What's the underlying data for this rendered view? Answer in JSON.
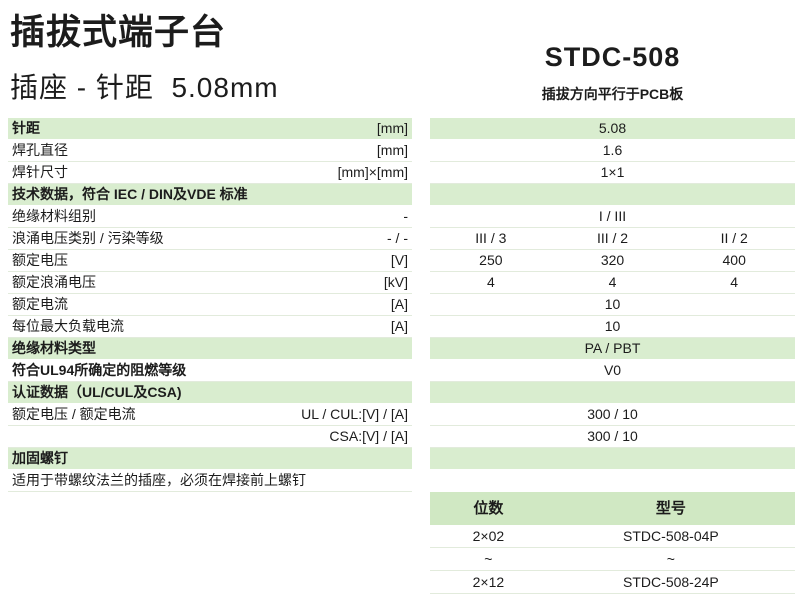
{
  "header": {
    "title": "插拔式端子台",
    "subtitle": "插座 - 针距  5.08mm",
    "product_code": "STDC-508",
    "orientation_note": "插拔方向平行于PCB板"
  },
  "colors": {
    "highlight_green": "#d9edcf",
    "table_header_green": "#d0e8c3",
    "separator": "#e2ebdc",
    "text": "#1c1c1c"
  },
  "spec_table": {
    "rows": [
      {
        "label": "针距",
        "unit": "[mm]",
        "value": "5.08",
        "highlight": true,
        "bold": true
      },
      {
        "label": "焊孔直径",
        "unit": "[mm]",
        "value": "1.6"
      },
      {
        "label": "焊针尺寸",
        "unit": "[mm]×[mm]",
        "value": "1×1"
      },
      {
        "label": "技术数据，符合 IEC / DIN及VDE 标准",
        "unit": "",
        "value": "",
        "highlight": true,
        "bold": true
      },
      {
        "label": "绝缘材料组别",
        "unit": "-",
        "value": "I / III"
      },
      {
        "label": "浪涌电压类别 / 污染等级",
        "unit": "- / -",
        "values": [
          "III / 3",
          "III / 2",
          "II / 2"
        ]
      },
      {
        "label": "额定电压",
        "unit": "[V]",
        "values": [
          "250",
          "320",
          "400"
        ]
      },
      {
        "label": "额定浪涌电压",
        "unit": "[kV]",
        "values": [
          "4",
          "4",
          "4"
        ]
      },
      {
        "label": "额定电流",
        "unit": "[A]",
        "value": "10"
      },
      {
        "label": "每位最大负载电流",
        "unit": "[A]",
        "value": "10"
      },
      {
        "label": "绝缘材料类型",
        "unit": "",
        "value": "PA / PBT",
        "highlight": true,
        "bold": true
      },
      {
        "label": "符合UL94所确定的阻燃等级",
        "unit": "",
        "value": "V0",
        "bold": true
      },
      {
        "label": "认证数据（UL/CUL及CSA)",
        "unit": "",
        "value": "",
        "highlight": true,
        "bold": true
      },
      {
        "label": "额定电压 / 额定电流",
        "unit": "UL / CUL:[V] / [A]",
        "value": "300 / 10"
      },
      {
        "label": "",
        "unit": "CSA:[V] / [A]",
        "value": "300 / 10"
      },
      {
        "label": "加固螺钉",
        "unit": "",
        "value": "",
        "highlight": true,
        "bold": true
      },
      {
        "label": "适用于带螺纹法兰的插座，必须在焊接前上螺钉",
        "unit": "",
        "value": null
      }
    ]
  },
  "model_table": {
    "headers": [
      "位数",
      "型号"
    ],
    "rows": [
      [
        "2×02",
        "STDC-508-04P"
      ],
      [
        "~",
        "~"
      ],
      [
        "2×12",
        "STDC-508-24P"
      ]
    ]
  }
}
